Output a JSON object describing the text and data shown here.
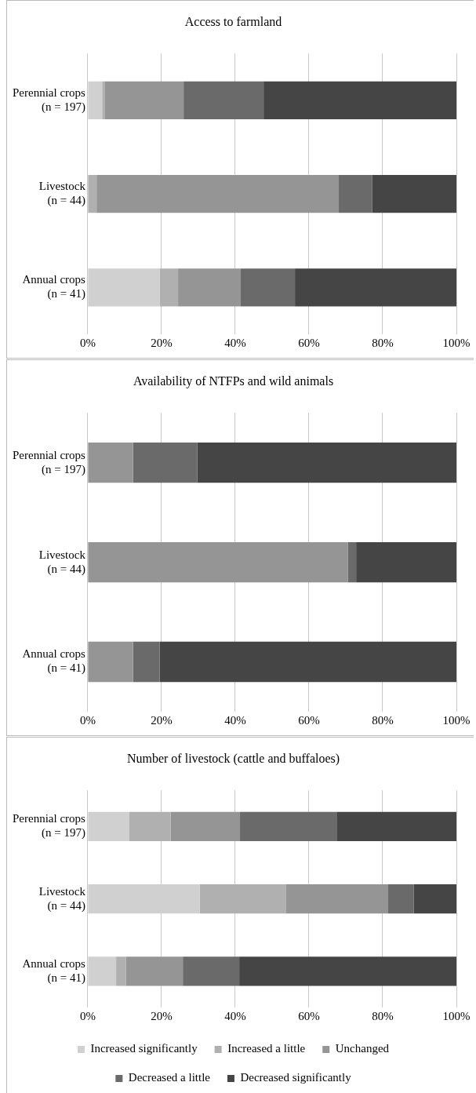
{
  "chart_data": [
    {
      "type": "bar",
      "title": "Access to farmland",
      "orientation": "horizontal",
      "stacked": true,
      "grid": "x",
      "legend": false,
      "categories": [
        "Perennial crops (n = 197)",
        "Livestock (n = 44)",
        "Annual crops (n = 41)"
      ],
      "xlim": [
        0,
        100
      ],
      "xticks": [
        {
          "value": 0,
          "label": "0%"
        },
        {
          "value": 20,
          "label": "20%"
        },
        {
          "value": 40,
          "label": "40%"
        },
        {
          "value": 60,
          "label": "60%"
        },
        {
          "value": 80,
          "label": "80%"
        },
        {
          "value": 100,
          "label": "100%"
        }
      ],
      "series": [
        {
          "color": "#d0d0d0",
          "values": [
            3.9,
            0,
            19.5
          ]
        },
        {
          "color": "#b0b0b0",
          "values": [
            0.8,
            2.4,
            5.0
          ]
        },
        {
          "color": "#959595",
          "values": [
            21.3,
            65.7,
            17.0
          ]
        },
        {
          "color": "#6a6a6a",
          "values": [
            21.7,
            9.1,
            14.7
          ]
        },
        {
          "color": "#454545",
          "values": [
            52.3,
            22.8,
            43.8
          ]
        }
      ]
    },
    {
      "type": "bar",
      "title": "Availability of NTFPs and wild animals",
      "orientation": "horizontal",
      "stacked": true,
      "grid": "x",
      "legend": false,
      "categories": [
        "Perennial crops (n = 197)",
        "Livestock (n = 44)",
        "Annual crops (n = 41)"
      ],
      "xlim": [
        0,
        100
      ],
      "xticks": [
        {
          "value": 0,
          "label": "0%"
        },
        {
          "value": 20,
          "label": "20%"
        },
        {
          "value": 40,
          "label": "40%"
        },
        {
          "value": 60,
          "label": "60%"
        },
        {
          "value": 80,
          "label": "80%"
        },
        {
          "value": 100,
          "label": "100%"
        }
      ],
      "series": [
        {
          "color": "#959595",
          "values": [
            12.3,
            70.6,
            12.3
          ]
        },
        {
          "color": "#6a6a6a",
          "values": [
            17.4,
            2.2,
            7.2
          ]
        },
        {
          "color": "#454545",
          "values": [
            70.3,
            27.2,
            80.5
          ]
        }
      ]
    },
    {
      "type": "bar",
      "title": "Number of livestock (cattle and buffaloes)",
      "orientation": "horizontal",
      "stacked": true,
      "grid": "x",
      "legend": "bottom",
      "categories": [
        "Perennial crops (n = 197)",
        "Livestock (n = 44)",
        "Annual crops (n = 41)"
      ],
      "xlim": [
        0,
        100
      ],
      "xticks": [
        {
          "value": 0,
          "label": "0%"
        },
        {
          "value": 20,
          "label": "20%"
        },
        {
          "value": 40,
          "label": "40%"
        },
        {
          "value": 60,
          "label": "60%"
        },
        {
          "value": 80,
          "label": "80%"
        },
        {
          "value": 100,
          "label": "100%"
        }
      ],
      "series": [
        {
          "name": "Increased significantly",
          "color": "#d0d0d0",
          "values": [
            11.3,
            30.4,
            7.7
          ]
        },
        {
          "name": "Increased a little",
          "color": "#b0b0b0",
          "values": [
            11.2,
            23.3,
            2.7
          ]
        },
        {
          "name": "Unchanged",
          "color": "#959595",
          "values": [
            18.8,
            27.8,
            15.4
          ]
        },
        {
          "name": "Decreased a little",
          "color": "#6a6a6a",
          "values": [
            26.2,
            6.9,
            15.3
          ]
        },
        {
          "name": "Decreased significantly",
          "color": "#454545",
          "values": [
            32.5,
            11.6,
            58.9
          ]
        }
      ]
    }
  ]
}
